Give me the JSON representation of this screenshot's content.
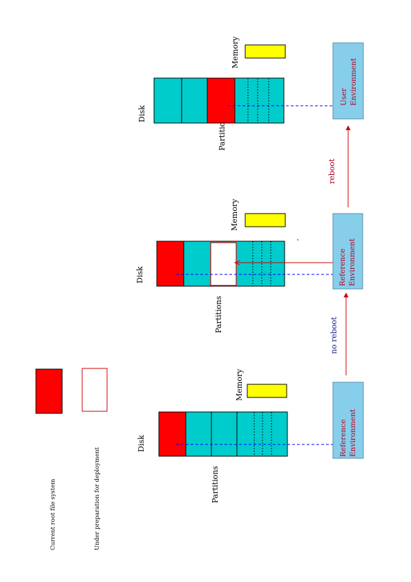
{
  "legend": {
    "current_root": "Current root file system",
    "under_preparation": "Under preparation for deployment"
  },
  "stages": [
    {
      "disk_label": "Disk",
      "partitions_label": "Partitions",
      "memory_label": "Memory",
      "environment_line1": "Reference",
      "environment_line2": "Environment"
    },
    {
      "disk_label": "Disk",
      "partitions_label": "Partitions",
      "memory_label": "Memory",
      "environment_line1": "Reference",
      "environment_line2": "Environment"
    },
    {
      "disk_label": "Disk",
      "partitions_label": "Partitions",
      "memory_label": "Memory",
      "environment_line1": "User",
      "environment_line2": "Environment"
    }
  ],
  "transitions": {
    "first": "no reboot",
    "second": "reboot"
  },
  "colors": {
    "disk": "#00cccc",
    "current_root": "#ff0000",
    "memory": "#ffff00",
    "environment": "#87ceeb",
    "arrow": "#cc0000",
    "dashed": "#0000ff"
  }
}
